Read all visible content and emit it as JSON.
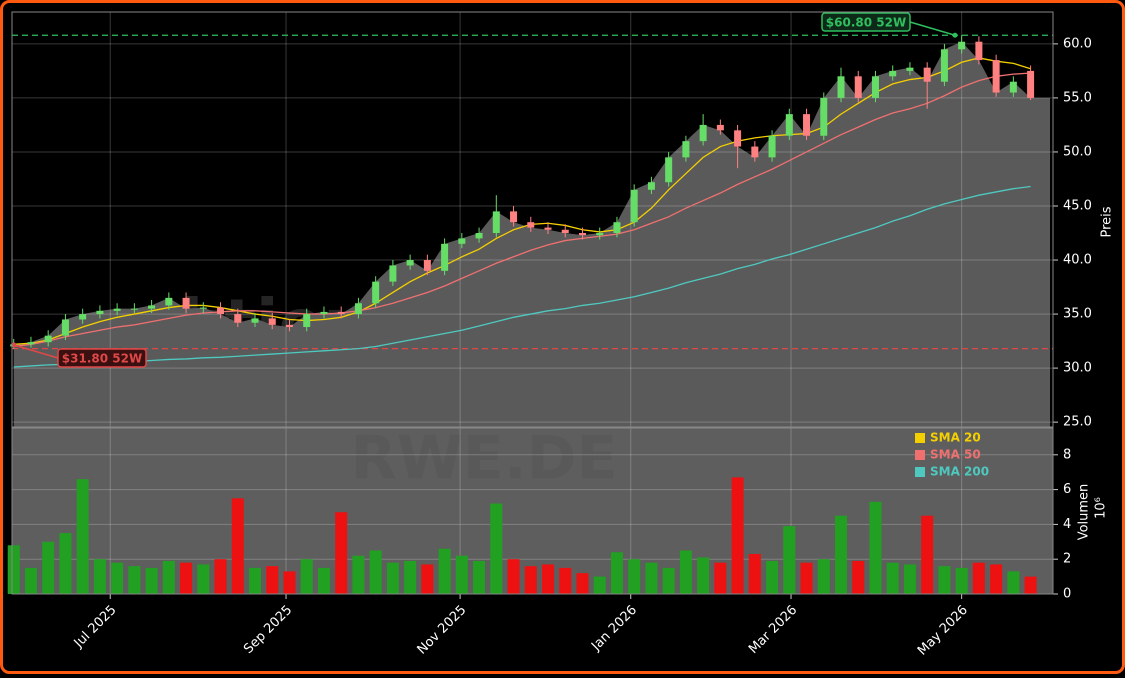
{
  "chart_data": {
    "type": "candlestick",
    "ylabel": "Preis",
    "grid": true,
    "legend": "upper right",
    "up_color": "#66dd66",
    "down_color": "#ff8080",
    "area_color": "#5a5a5a",
    "xlim": [
      -0.1,
      60.3
    ],
    "xticks": [
      {
        "value": 5.6,
        "label": "Jul 2025"
      },
      {
        "value": 15.8,
        "label": "Sep 2025"
      },
      {
        "value": 25.9,
        "label": "Nov 2025"
      },
      {
        "value": 35.8,
        "label": "Jan 2026"
      },
      {
        "value": 45.1,
        "label": "Mar 2026"
      },
      {
        "value": 55.0,
        "label": "May 2026"
      }
    ],
    "ylim": [
      24.55,
      62.95
    ],
    "yticks": [
      {
        "value": 25,
        "label": "25.0"
      },
      {
        "value": 30,
        "label": "30.0"
      },
      {
        "value": 35,
        "label": "35.0"
      },
      {
        "value": 40,
        "label": "40.0"
      },
      {
        "value": 45,
        "label": "45.0"
      },
      {
        "value": 50,
        "label": "50.0"
      },
      {
        "value": 55,
        "label": "55.0"
      },
      {
        "value": 60,
        "label": "60.0"
      }
    ],
    "open": [
      32.0,
      32.2,
      32.4,
      33.0,
      34.5,
      35.0,
      35.3,
      35.5,
      35.5,
      35.8,
      36.5,
      35.5,
      35.6,
      35.0,
      34.2,
      34.6,
      34.0,
      33.8,
      35.0,
      35.2,
      35.0,
      36.0,
      38.0,
      39.5,
      40.0,
      39.0,
      41.5,
      42.0,
      42.5,
      44.5,
      43.5,
      43.0,
      42.8,
      42.5,
      42.3,
      42.5,
      43.5,
      46.5,
      47.2,
      49.5,
      51.0,
      52.5,
      52.0,
      50.5,
      49.5,
      51.5,
      53.5,
      51.5,
      55.0,
      57.0,
      55.0,
      57.0,
      57.5,
      57.8,
      56.5,
      59.5,
      60.2,
      58.5,
      55.5,
      57.5
    ],
    "high": [
      32.7,
      32.9,
      33.5,
      35.0,
      35.5,
      35.8,
      36.0,
      36.0,
      36.3,
      37.0,
      37.0,
      36.1,
      36.1,
      35.5,
      35.1,
      35.1,
      34.5,
      35.5,
      35.7,
      35.7,
      36.5,
      38.5,
      40.0,
      40.5,
      40.5,
      42.0,
      42.5,
      43.0,
      46.0,
      45.0,
      44.0,
      43.5,
      43.3,
      43.0,
      43.0,
      44.0,
      47.0,
      47.7,
      50.0,
      51.5,
      53.5,
      53.0,
      52.5,
      51.0,
      52.0,
      54.0,
      54.0,
      55.5,
      57.8,
      57.5,
      57.5,
      58.0,
      58.3,
      58.3,
      60.0,
      60.8,
      60.7,
      59.0,
      57.0,
      58.0
    ],
    "low": [
      31.8,
      31.9,
      32.0,
      32.6,
      34.1,
      34.6,
      34.9,
      35.1,
      35.1,
      35.4,
      35.1,
      35.1,
      34.6,
      33.8,
      33.8,
      33.6,
      33.4,
      33.4,
      34.6,
      34.6,
      34.6,
      35.6,
      37.6,
      39.1,
      38.6,
      38.6,
      41.1,
      41.6,
      42.1,
      43.1,
      42.6,
      42.4,
      42.1,
      41.9,
      41.9,
      42.1,
      43.1,
      46.1,
      46.8,
      49.1,
      50.6,
      51.6,
      48.5,
      49.1,
      49.1,
      51.1,
      51.1,
      51.1,
      54.6,
      54.6,
      54.6,
      56.6,
      57.1,
      54.0,
      56.1,
      59.1,
      58.1,
      55.1,
      55.1,
      54.8
    ],
    "close": [
      32.2,
      32.4,
      33.0,
      34.5,
      35.0,
      35.3,
      35.5,
      35.5,
      35.8,
      36.5,
      35.5,
      35.6,
      35.0,
      34.2,
      34.6,
      34.0,
      33.8,
      35.0,
      35.2,
      35.0,
      36.0,
      38.0,
      39.5,
      40.0,
      39.0,
      41.5,
      42.0,
      42.5,
      44.5,
      43.5,
      43.0,
      42.8,
      42.5,
      42.3,
      42.5,
      43.5,
      46.5,
      47.2,
      49.5,
      51.0,
      52.5,
      52.0,
      50.5,
      49.5,
      51.5,
      53.5,
      51.5,
      55.0,
      57.0,
      55.0,
      57.0,
      57.5,
      57.8,
      56.5,
      59.5,
      60.2,
      58.5,
      55.5,
      56.5,
      55.0
    ],
    "series": [
      {
        "name": "SMA 20",
        "color": "#f5d000",
        "values": [
          32.2,
          32.3,
          32.6,
          33.2,
          33.8,
          34.3,
          34.7,
          35.0,
          35.3,
          35.6,
          35.8,
          35.8,
          35.6,
          35.3,
          35.0,
          34.8,
          34.5,
          34.4,
          34.5,
          34.7,
          35.2,
          36.0,
          37.0,
          38.0,
          38.8,
          39.5,
          40.3,
          41.0,
          42.0,
          42.8,
          43.3,
          43.4,
          43.2,
          42.8,
          42.6,
          42.8,
          43.5,
          44.8,
          46.5,
          48.0,
          49.5,
          50.5,
          51.0,
          51.3,
          51.5,
          51.6,
          51.7,
          52.3,
          53.5,
          54.5,
          55.5,
          56.3,
          56.7,
          56.9,
          57.5,
          58.3,
          58.7,
          58.4,
          58.2,
          57.7
        ]
      },
      {
        "name": "SMA 50",
        "color": "#f07070",
        "values": [
          32.0,
          32.2,
          32.5,
          32.9,
          33.2,
          33.5,
          33.8,
          34.0,
          34.3,
          34.6,
          34.9,
          35.1,
          35.2,
          35.3,
          35.3,
          35.2,
          35.1,
          35.0,
          35.0,
          35.1,
          35.3,
          35.6,
          36.0,
          36.5,
          37.0,
          37.6,
          38.3,
          39.0,
          39.7,
          40.3,
          40.9,
          41.4,
          41.8,
          42.0,
          42.2,
          42.4,
          42.8,
          43.4,
          44.0,
          44.8,
          45.5,
          46.2,
          47.0,
          47.7,
          48.4,
          49.2,
          50.0,
          50.8,
          51.6,
          52.3,
          53.0,
          53.6,
          54.0,
          54.5,
          55.2,
          56.0,
          56.6,
          57.0,
          57.2,
          57.3
        ]
      },
      {
        "name": "SMA 200",
        "color": "#4fc9c0",
        "values": [
          30.1,
          30.2,
          30.3,
          30.35,
          30.4,
          30.5,
          30.55,
          30.6,
          30.7,
          30.8,
          30.85,
          30.95,
          31.0,
          31.1,
          31.2,
          31.3,
          31.4,
          31.5,
          31.6,
          31.7,
          31.8,
          32.0,
          32.3,
          32.6,
          32.9,
          33.2,
          33.5,
          33.9,
          34.3,
          34.7,
          35.0,
          35.3,
          35.5,
          35.8,
          36.0,
          36.3,
          36.6,
          37.0,
          37.4,
          37.9,
          38.3,
          38.7,
          39.2,
          39.6,
          40.1,
          40.5,
          41.0,
          41.5,
          42.0,
          42.5,
          43.0,
          43.6,
          44.1,
          44.7,
          45.2,
          45.6,
          46.0,
          46.3,
          46.6,
          46.8
        ]
      }
    ],
    "annotations": [
      {
        "value": 60.8,
        "label": "$60.80 52W",
        "color": "#2fbf5f"
      },
      {
        "value": 31.8,
        "label": "$31.80 52W",
        "color": "#e04848"
      }
    ],
    "watermarks": [
      "aktiensignale.trade",
      "RWE.DE"
    ],
    "volume": {
      "ylabel": "Volumen",
      "unit": "10⁶",
      "up_color": "#22a022",
      "down_color": "#ee1111",
      "ylim": [
        0,
        9.54
      ],
      "yticks": [
        0,
        2,
        4,
        6,
        8
      ],
      "values": [
        2.8,
        1.5,
        3.0,
        3.5,
        6.6,
        2.0,
        1.8,
        1.6,
        1.5,
        1.9,
        1.8,
        1.7,
        2.0,
        5.5,
        1.5,
        1.6,
        1.3,
        2.0,
        1.5,
        4.7,
        2.2,
        2.5,
        1.8,
        1.9,
        1.7,
        2.6,
        2.2,
        1.9,
        5.2,
        2.0,
        1.6,
        1.7,
        1.5,
        1.2,
        1.0,
        2.4,
        2.0,
        1.8,
        1.5,
        2.5,
        2.1,
        1.8,
        6.7,
        2.3,
        1.9,
        3.9,
        1.8,
        2.0,
        4.5,
        1.9,
        5.3,
        1.8,
        1.7,
        4.5,
        1.6,
        1.5,
        1.8,
        1.7,
        1.3,
        1.0
      ]
    }
  }
}
